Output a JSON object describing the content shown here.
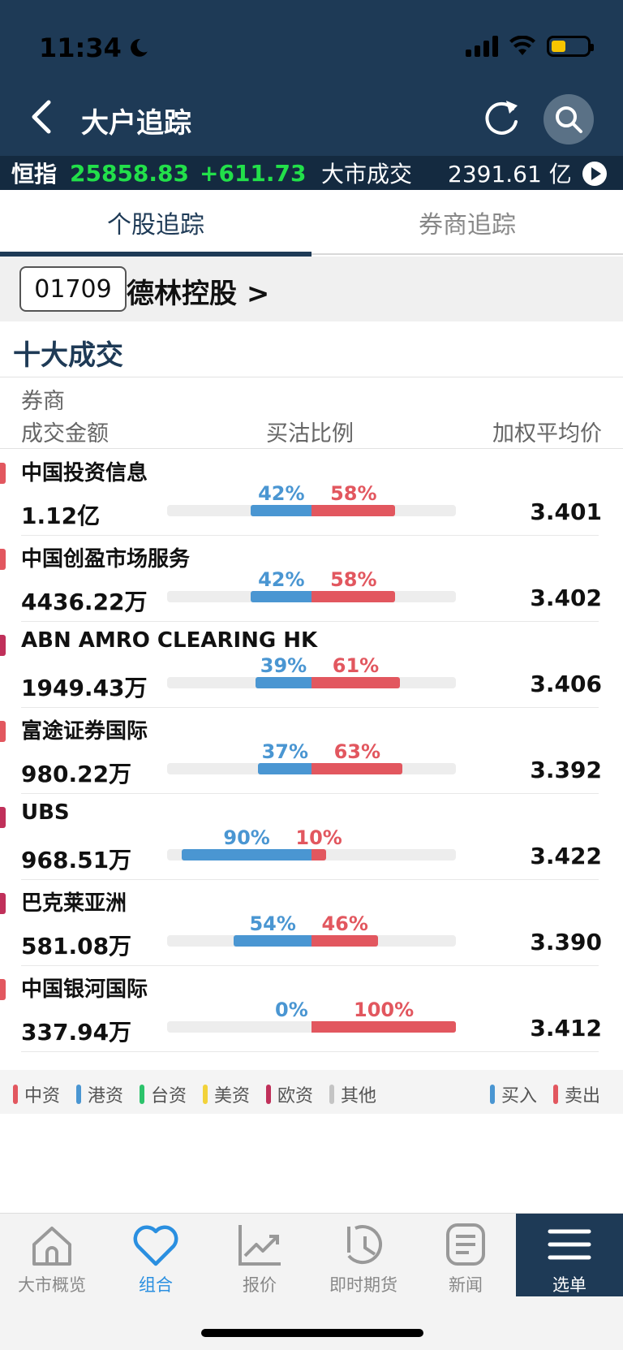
{
  "status_bar": {
    "time": "11:34"
  },
  "header": {
    "title": "大户追踪"
  },
  "ticker": {
    "label": "恒指",
    "index": "25858.83",
    "change": "+611.73",
    "volume_label": "大市成交",
    "volume": "2391.61 亿"
  },
  "tabs": [
    {
      "label": "个股追踪",
      "active": true
    },
    {
      "label": "券商追踪",
      "active": false
    }
  ],
  "stock": {
    "code": "01709",
    "name": "德林控股 >"
  },
  "section_title": "十大成交",
  "columns": {
    "broker": "券商",
    "amount": "成交金额",
    "ratio": "买沽比例",
    "avg_price": "加权平均价"
  },
  "rows": [
    {
      "broker": "中国投资信息",
      "amount": "1.12亿",
      "buy_pct": "42%",
      "sell_pct": "58%",
      "buy": 42,
      "sell": 58,
      "avg": "3.401",
      "origin_color": "#e2575f"
    },
    {
      "broker": "中国创盈市场服务",
      "amount": "4436.22万",
      "buy_pct": "42%",
      "sell_pct": "58%",
      "buy": 42,
      "sell": 58,
      "avg": "3.402",
      "origin_color": "#e2575f"
    },
    {
      "broker": "ABN AMRO CLEARING HK",
      "amount": "1949.43万",
      "buy_pct": "39%",
      "sell_pct": "61%",
      "buy": 39,
      "sell": 61,
      "avg": "3.406",
      "origin_color": "#c0305a"
    },
    {
      "broker": "富途证券国际",
      "amount": "980.22万",
      "buy_pct": "37%",
      "sell_pct": "63%",
      "buy": 37,
      "sell": 63,
      "avg": "3.392",
      "origin_color": "#e2575f"
    },
    {
      "broker": "UBS",
      "amount": "968.51万",
      "buy_pct": "90%",
      "sell_pct": "10%",
      "buy": 90,
      "sell": 10,
      "avg": "3.422",
      "origin_color": "#c0305a"
    },
    {
      "broker": "巴克莱亚洲",
      "amount": "581.08万",
      "buy_pct": "54%",
      "sell_pct": "46%",
      "buy": 54,
      "sell": 46,
      "avg": "3.390",
      "origin_color": "#c0305a"
    },
    {
      "broker": "中国银河国际",
      "amount": "337.94万",
      "buy_pct": "0%",
      "sell_pct": "100%",
      "buy": 0,
      "sell": 100,
      "avg": "3.412",
      "origin_color": "#e2575f"
    }
  ],
  "legend": {
    "items": [
      {
        "label": "中资",
        "color": "#e2575f"
      },
      {
        "label": "港资",
        "color": "#4a96d2"
      },
      {
        "label": "台资",
        "color": "#2cc36b"
      },
      {
        "label": "美资",
        "color": "#f2d23a"
      },
      {
        "label": "欧资",
        "color": "#c0305a"
      },
      {
        "label": "其他",
        "color": "#c4c4c4"
      }
    ],
    "buy": {
      "label": "买入",
      "color": "#4a96d2"
    },
    "sell": {
      "label": "卖出",
      "color": "#e2575f"
    }
  },
  "bottom_nav": [
    {
      "label": "大市概览",
      "icon": "house-icon"
    },
    {
      "label": "组合",
      "icon": "heart-icon",
      "active": true
    },
    {
      "label": "报价",
      "icon": "chart-icon"
    },
    {
      "label": "即时期货",
      "icon": "clock-icon"
    },
    {
      "label": "新闻",
      "icon": "news-icon"
    },
    {
      "label": "选单",
      "icon": "menu-icon"
    }
  ]
}
